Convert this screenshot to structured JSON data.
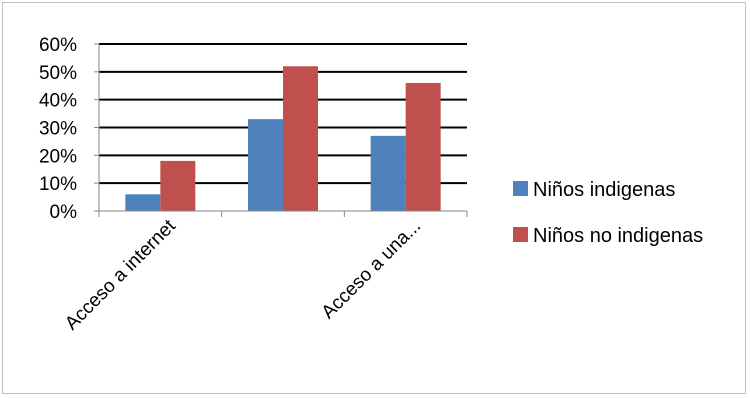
{
  "chart_data": {
    "type": "bar",
    "categories": [
      "Acceso a internet",
      "",
      "Acceso a una..."
    ],
    "series": [
      {
        "name": "Niños indigenas",
        "color": "#4f81bd",
        "values": [
          6,
          33,
          27
        ]
      },
      {
        "name": "Niños no indigenas",
        "color": "#c0504d",
        "values": [
          18,
          52,
          46
        ]
      }
    ],
    "y_ticks": [
      "0%",
      "10%",
      "20%",
      "30%",
      "40%",
      "50%",
      "60%"
    ],
    "ylim": [
      0,
      60
    ],
    "y_unit": "%",
    "grid": true,
    "legend_position": "right",
    "title": "",
    "xlabel": "",
    "ylabel": ""
  }
}
